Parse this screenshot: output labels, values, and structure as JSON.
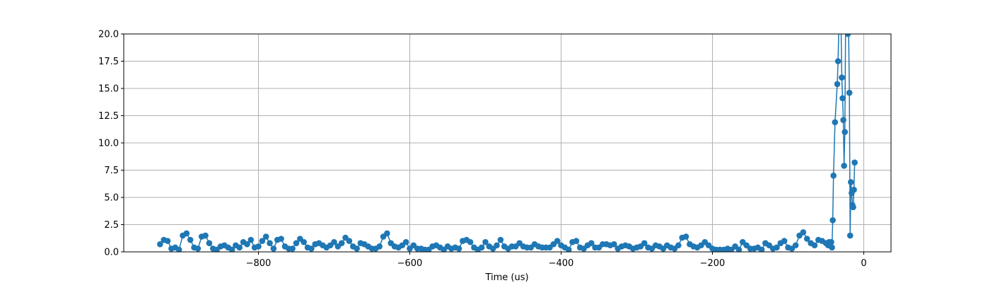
{
  "chart_data": {
    "type": "line",
    "xlabel": "Time (us)",
    "ylabel": "",
    "xlim": [
      -978,
      36
    ],
    "ylim": [
      0,
      20
    ],
    "x_ticks": [
      -800,
      -600,
      -400,
      -200,
      0
    ],
    "y_ticks": [
      0.0,
      2.5,
      5.0,
      7.5,
      10.0,
      12.5,
      15.0,
      17.5,
      20.0
    ],
    "x_tick_labels": [
      "−800",
      "−600",
      "−400",
      "−200",
      "0"
    ],
    "y_tick_labels": [
      "0.0",
      "2.5",
      "5.0",
      "7.5",
      "10.0",
      "12.5",
      "15.0",
      "17.5",
      "20.0"
    ],
    "grid": true,
    "marker": "circle",
    "series": [
      {
        "color": "#1f77b4",
        "x": [
          -930,
          -925,
          -920,
          -915,
          -910,
          -905,
          -900,
          -895,
          -890,
          -885,
          -880,
          -875,
          -870,
          -865,
          -860,
          -855,
          -850,
          -845,
          -840,
          -835,
          -830,
          -825,
          -820,
          -815,
          -810,
          -805,
          -800,
          -795,
          -790,
          -785,
          -780,
          -775,
          -770,
          -765,
          -760,
          -755,
          -750,
          -745,
          -740,
          -735,
          -730,
          -725,
          -720,
          -715,
          -710,
          -705,
          -700,
          -695,
          -690,
          -685,
          -680,
          -675,
          -670,
          -665,
          -660,
          -655,
          -650,
          -645,
          -640,
          -635,
          -630,
          -625,
          -620,
          -615,
          -610,
          -605,
          -600,
          -595,
          -590,
          -585,
          -580,
          -575,
          -570,
          -565,
          -560,
          -555,
          -550,
          -545,
          -540,
          -535,
          -530,
          -525,
          -520,
          -515,
          -510,
          -505,
          -500,
          -495,
          -490,
          -485,
          -480,
          -475,
          -470,
          -465,
          -460,
          -455,
          -450,
          -445,
          -440,
          -435,
          -430,
          -425,
          -420,
          -415,
          -410,
          -405,
          -400,
          -395,
          -390,
          -385,
          -380,
          -375,
          -370,
          -365,
          -360,
          -355,
          -350,
          -345,
          -340,
          -335,
          -330,
          -325,
          -320,
          -315,
          -310,
          -305,
          -300,
          -295,
          -290,
          -285,
          -280,
          -275,
          -270,
          -265,
          -260,
          -255,
          -250,
          -245,
          -240,
          -235,
          -230,
          -225,
          -220,
          -215,
          -210,
          -205,
          -200,
          -195,
          -190,
          -185,
          -180,
          -175,
          -170,
          -165,
          -160,
          -155,
          -150,
          -145,
          -140,
          -135,
          -130,
          -125,
          -120,
          -115,
          -110,
          -105,
          -100,
          -95,
          -90,
          -85,
          -80,
          -75,
          -70,
          -65,
          -60,
          -55,
          -50,
          -47,
          -46,
          -45,
          -44,
          -43,
          -42,
          -41,
          -40,
          -38,
          -35,
          -34,
          -33,
          -32,
          -31,
          -30,
          -29,
          -28,
          -27,
          -26,
          -25,
          -24,
          -23,
          -22,
          -21,
          -20,
          -19,
          -18,
          -17,
          -16,
          -15,
          -14,
          -13,
          -12
        ],
        "y": [
          0.7,
          1.1,
          1.0,
          0.3,
          0.4,
          0.2,
          1.5,
          1.7,
          1.1,
          0.4,
          0.3,
          1.4,
          1.5,
          0.8,
          0.3,
          0.2,
          0.5,
          0.6,
          0.4,
          0.2,
          0.6,
          0.4,
          0.9,
          0.7,
          1.1,
          0.4,
          0.5,
          1.0,
          1.4,
          0.8,
          0.3,
          1.1,
          1.2,
          0.5,
          0.3,
          0.3,
          0.8,
          1.2,
          0.9,
          0.4,
          0.3,
          0.7,
          0.8,
          0.6,
          0.4,
          0.6,
          0.9,
          0.5,
          0.8,
          1.3,
          1.0,
          0.5,
          0.3,
          0.8,
          0.7,
          0.5,
          0.3,
          0.3,
          0.5,
          1.4,
          1.7,
          0.8,
          0.5,
          0.4,
          0.6,
          0.9,
          0.3,
          0.6,
          0.3,
          0.3,
          0.2,
          0.2,
          0.5,
          0.6,
          0.4,
          0.2,
          0.5,
          0.3,
          0.4,
          0.3,
          1.0,
          1.1,
          0.9,
          0.4,
          0.2,
          0.4,
          0.9,
          0.5,
          0.3,
          0.6,
          1.1,
          0.5,
          0.3,
          0.5,
          0.5,
          0.8,
          0.5,
          0.4,
          0.4,
          0.7,
          0.5,
          0.4,
          0.4,
          0.4,
          0.7,
          1.0,
          0.6,
          0.4,
          0.2,
          0.9,
          1.0,
          0.4,
          0.3,
          0.6,
          0.8,
          0.4,
          0.4,
          0.7,
          0.7,
          0.6,
          0.7,
          0.3,
          0.5,
          0.6,
          0.5,
          0.3,
          0.4,
          0.5,
          0.8,
          0.4,
          0.3,
          0.6,
          0.5,
          0.3,
          0.6,
          0.4,
          0.3,
          0.6,
          1.3,
          1.4,
          0.7,
          0.5,
          0.4,
          0.6,
          0.9,
          0.6,
          0.3,
          0.2,
          0.2,
          0.2,
          0.3,
          0.2,
          0.5,
          0.2,
          0.9,
          0.6,
          0.3,
          0.3,
          0.4,
          0.2,
          0.8,
          0.6,
          0.3,
          0.4,
          0.8,
          1.0,
          0.4,
          0.3,
          0.6,
          1.5,
          1.8,
          1.2,
          0.8,
          0.6,
          1.1,
          1.0,
          0.8,
          0.6,
          0.9,
          0.7,
          0.8,
          0.9,
          0.4,
          2.9,
          7.0,
          11.9,
          15.4,
          17.5,
          20.3,
          21.0,
          22.0,
          20.5,
          16.0,
          14.1,
          12.1,
          7.9,
          11.0,
          20.8,
          21.0,
          20.3,
          20.0,
          20.2,
          14.6,
          1.5,
          6.4,
          5.4,
          4.3,
          4.1,
          5.7,
          8.2
        ]
      }
    ]
  }
}
